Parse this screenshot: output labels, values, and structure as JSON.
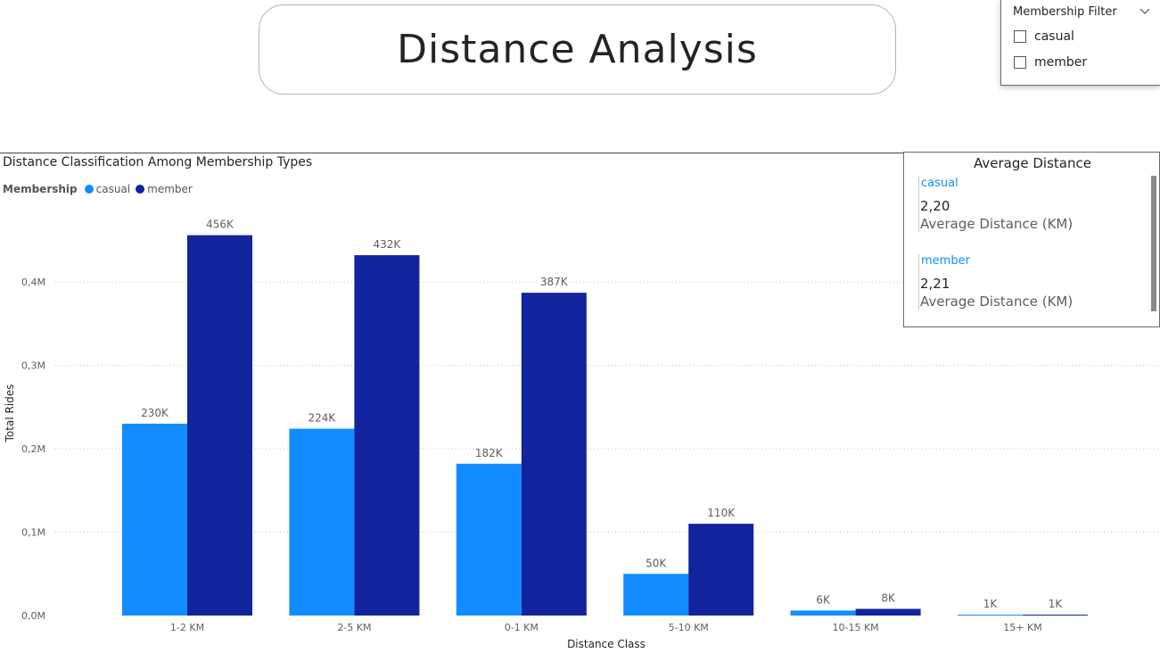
{
  "page_title": "Distance Analysis",
  "filter": {
    "title": "Membership Filter",
    "options": [
      "casual",
      "member"
    ]
  },
  "chart_data": {
    "type": "bar",
    "title": "Distance Classification Among Membership Types",
    "legend_title": "Membership",
    "xlabel": "Distance Class",
    "ylabel": "Total Rides",
    "categories": [
      "1-2 KM",
      "2-5 KM",
      "0-1 KM",
      "5-10 KM",
      "10-15 KM",
      "15+ KM"
    ],
    "series": [
      {
        "name": "casual",
        "values": [
          230000,
          224000,
          182000,
          50000,
          6000,
          1000
        ],
        "labels": [
          "230K",
          "224K",
          "182K",
          "50K",
          "6K",
          "1K"
        ],
        "color": "#118dff"
      },
      {
        "name": "member",
        "values": [
          456000,
          432000,
          387000,
          110000,
          8000,
          1000
        ],
        "labels": [
          "456K",
          "432K",
          "387K",
          "110K",
          "8K",
          "1K"
        ],
        "color": "#12239e"
      }
    ],
    "ylim": [
      0,
      0.4
    ],
    "yticks": [
      0,
      0.1,
      0.2,
      0.3,
      0.4
    ],
    "ytick_labels": [
      "0,0M",
      "0,1M",
      "0,2M",
      "0,3M",
      "0,4M"
    ],
    "grid": true,
    "legend_position": "top-left"
  },
  "avg_card": {
    "title": "Average Distance",
    "items": [
      {
        "category": "casual",
        "value": "2,20",
        "label": "Average Distance (KM)"
      },
      {
        "category": "member",
        "value": "2,21",
        "label": "Average Distance (KM)"
      }
    ]
  },
  "colors": {
    "casual": "#118dff",
    "member": "#12239e"
  },
  "icons": {
    "filter_toggle": "chevron-down-icon"
  }
}
